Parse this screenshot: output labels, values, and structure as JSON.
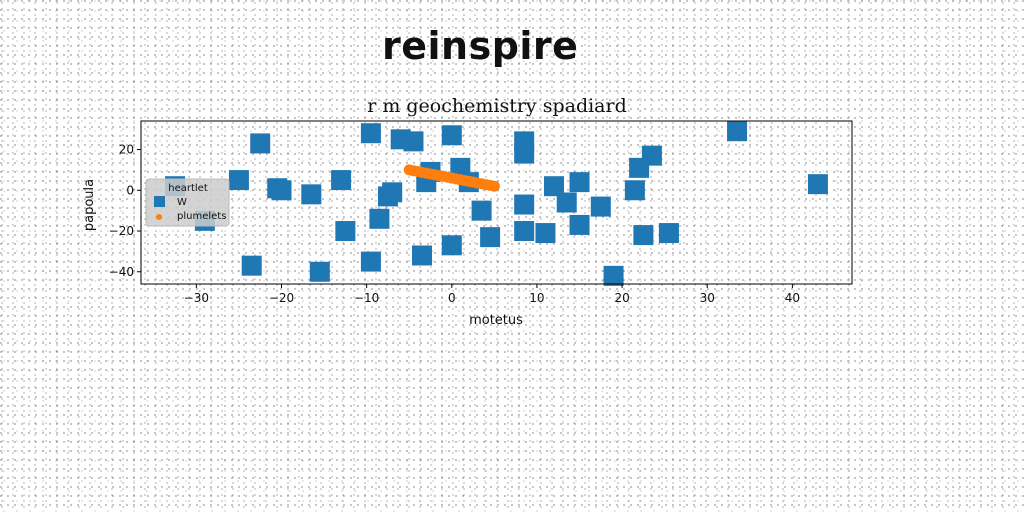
{
  "banner": "reinspire",
  "chart_data": {
    "type": "scatter",
    "title": "r m geochemistry spadiard",
    "xlabel": "motetus",
    "ylabel": "papoula",
    "xlim": [
      -36.5,
      47
    ],
    "ylim": [
      -46,
      34
    ],
    "xticks": [
      -30,
      -20,
      -10,
      0,
      10,
      20,
      30,
      40
    ],
    "yticks": [
      -40,
      -20,
      0,
      20
    ],
    "grid": false,
    "legend": {
      "title": "heartlet",
      "placement": "center-left"
    },
    "series": [
      {
        "name": "W",
        "marker": "square",
        "color": "#1f77b4",
        "points": [
          [
            -32.5,
            2
          ],
          [
            -29,
            -15
          ],
          [
            -25,
            5
          ],
          [
            -22.5,
            23
          ],
          [
            -23.5,
            -37
          ],
          [
            -20.5,
            1
          ],
          [
            -20,
            0
          ],
          [
            -16.5,
            -2
          ],
          [
            -15.5,
            -40
          ],
          [
            -13,
            5
          ],
          [
            -12.5,
            -20
          ],
          [
            -9.5,
            28
          ],
          [
            -9.5,
            -35
          ],
          [
            -8.5,
            -14
          ],
          [
            -7.5,
            -3
          ],
          [
            -7,
            -1
          ],
          [
            -6,
            25
          ],
          [
            -4.5,
            24
          ],
          [
            -3.5,
            -32
          ],
          [
            -3,
            4
          ],
          [
            -2.5,
            9
          ],
          [
            0,
            27
          ],
          [
            0,
            -27
          ],
          [
            1,
            11
          ],
          [
            2,
            4
          ],
          [
            3.5,
            -10
          ],
          [
            4.5,
            -23
          ],
          [
            8.5,
            24
          ],
          [
            8.5,
            18
          ],
          [
            8.5,
            -7
          ],
          [
            8.5,
            -20
          ],
          [
            11,
            -21
          ],
          [
            12,
            2
          ],
          [
            13.5,
            -6
          ],
          [
            15,
            4
          ],
          [
            15,
            -17
          ],
          [
            17.5,
            -8
          ],
          [
            19,
            -42
          ],
          [
            21.5,
            0
          ],
          [
            22,
            11
          ],
          [
            22.5,
            -22
          ],
          [
            23.5,
            17
          ],
          [
            25.5,
            -21
          ],
          [
            33.5,
            29
          ],
          [
            43,
            3
          ]
        ]
      },
      {
        "name": "plumelets",
        "marker": "circle",
        "color": "#ff7f0e",
        "points": [
          [
            -5,
            10
          ],
          [
            -4.5,
            9.6
          ],
          [
            -4,
            9.2
          ],
          [
            -3.5,
            8.8
          ],
          [
            -3,
            8.4
          ],
          [
            -2.5,
            8
          ],
          [
            -2,
            7.6
          ],
          [
            -1.5,
            7.2
          ],
          [
            -1,
            6.8
          ],
          [
            -0.5,
            6.4
          ],
          [
            0,
            6
          ],
          [
            0.5,
            5.6
          ],
          [
            1,
            5.2
          ],
          [
            1.5,
            4.8
          ],
          [
            2,
            4.4
          ],
          [
            2.5,
            4
          ],
          [
            3,
            3.6
          ],
          [
            3.5,
            3.2
          ],
          [
            4,
            2.8
          ],
          [
            4.5,
            2.4
          ],
          [
            5,
            2
          ]
        ]
      }
    ]
  },
  "colors": {
    "axes": "#000000",
    "legend_bg": "#cccccc"
  }
}
